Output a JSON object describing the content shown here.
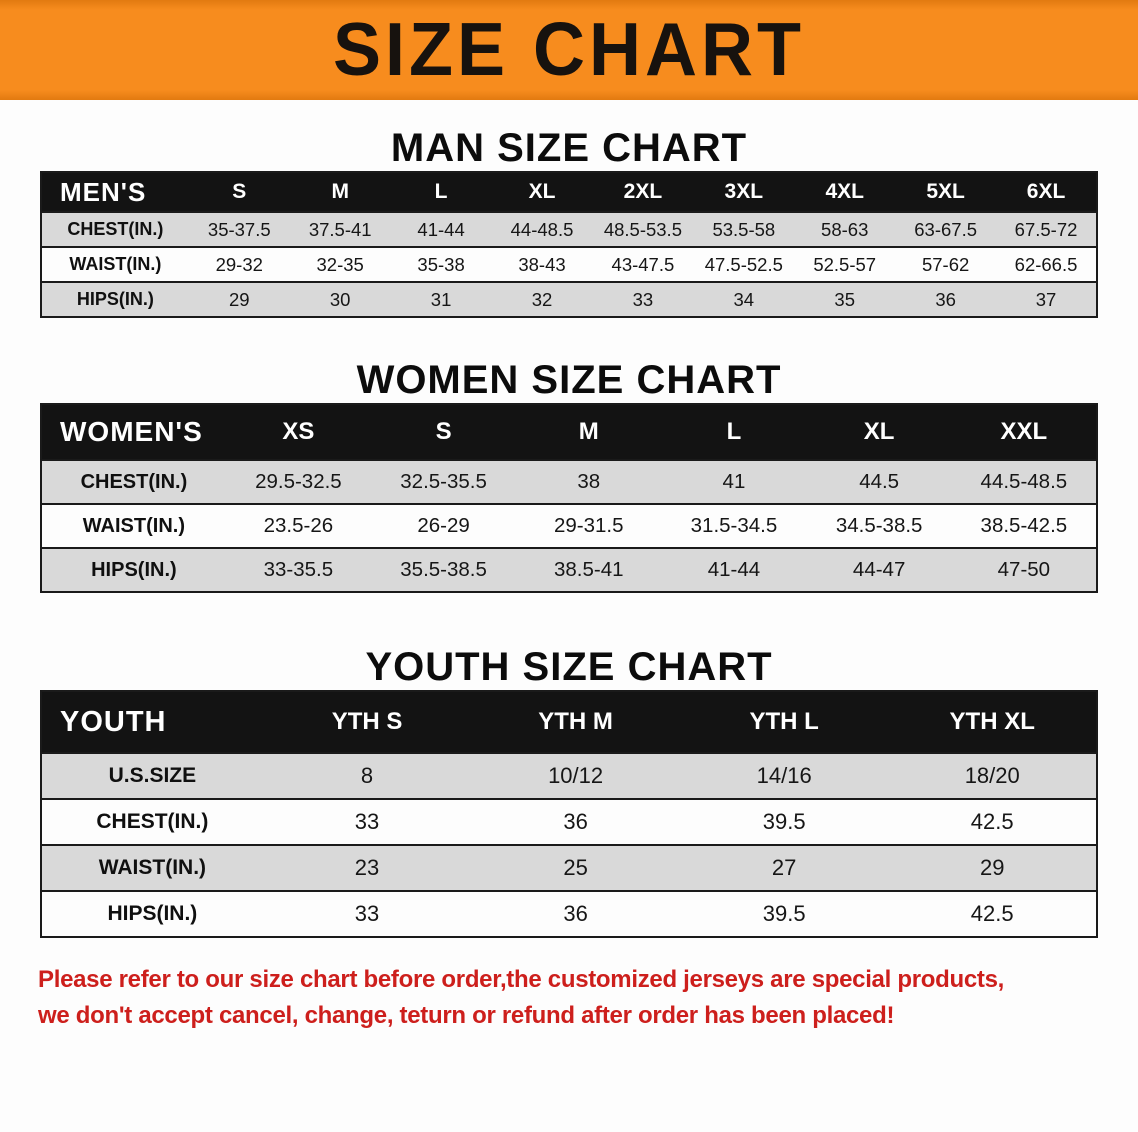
{
  "banner": {
    "title": "SIZE CHART",
    "bg_color": "#f78c1e",
    "text_color": "#17120e"
  },
  "colors": {
    "table_header_bg": "#131313",
    "table_header_text": "#ffffff",
    "row_gray": "#d9d9d9",
    "row_white": "#fdfdfd",
    "disclaimer_red": "#cd1f1c"
  },
  "sections": [
    {
      "heading": "MAN SIZE CHART",
      "table": {
        "header": [
          "MEN'S",
          "S",
          "M",
          "L",
          "XL",
          "2XL",
          "3XL",
          "4XL",
          "5XL",
          "6XL"
        ],
        "rows": [
          [
            "CHEST(IN.)",
            "35-37.5",
            "37.5-41",
            "41-44",
            "44-48.5",
            "48.5-53.5",
            "53.5-58",
            "58-63",
            "63-67.5",
            "67.5-72"
          ],
          [
            "WAIST(IN.)",
            "29-32",
            "32-35",
            "35-38",
            "38-43",
            "43-47.5",
            "47.5-52.5",
            "52.5-57",
            "57-62",
            "62-66.5"
          ],
          [
            "HIPS(IN.)",
            "29",
            "30",
            "31",
            "32",
            "33",
            "34",
            "35",
            "36",
            "37"
          ]
        ]
      }
    },
    {
      "heading": "WOMEN SIZE CHART",
      "table": {
        "header": [
          "WOMEN'S",
          "XS",
          "S",
          "M",
          "L",
          "XL",
          "XXL"
        ],
        "rows": [
          [
            "CHEST(IN.)",
            "29.5-32.5",
            "32.5-35.5",
            "38",
            "41",
            "44.5",
            "44.5-48.5"
          ],
          [
            "WAIST(IN.)",
            "23.5-26",
            "26-29",
            "29-31.5",
            "31.5-34.5",
            "34.5-38.5",
            "38.5-42.5"
          ],
          [
            "HIPS(IN.)",
            "33-35.5",
            "35.5-38.5",
            "38.5-41",
            "41-44",
            "44-47",
            "47-50"
          ]
        ]
      }
    },
    {
      "heading": "YOUTH SIZE CHART",
      "table": {
        "header": [
          "YOUTH",
          "YTH S",
          "YTH M",
          "YTH L",
          "YTH XL"
        ],
        "rows": [
          [
            "U.S.SIZE",
            "8",
            "10/12",
            "14/16",
            "18/20"
          ],
          [
            "CHEST(IN.)",
            "33",
            "36",
            "39.5",
            "42.5"
          ],
          [
            "WAIST(IN.)",
            "23",
            "25",
            "27",
            "29"
          ],
          [
            "HIPS(IN.)",
            "33",
            "36",
            "39.5",
            "42.5"
          ]
        ]
      }
    }
  ],
  "disclaimer": {
    "line1": "Please refer to our size chart before order,the customized jerseys are special products,",
    "line2": "we don't accept cancel, change, teturn or refund after order has been placed!"
  }
}
